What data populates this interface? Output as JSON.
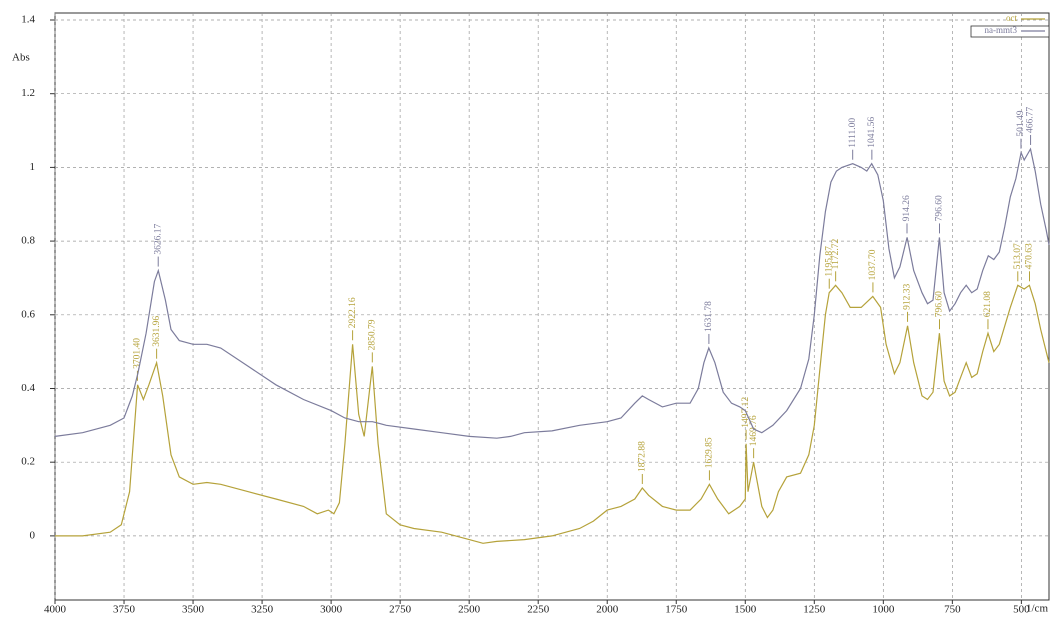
{
  "chart_data": {
    "type": "line",
    "x_label": "1/cm",
    "y_label": "Abs",
    "xlim": [
      4000,
      400
    ],
    "ylim": [
      -0.174,
      1.419
    ],
    "xticks": [
      4000,
      3750,
      3500,
      3250,
      3000,
      2750,
      2500,
      2250,
      2000,
      1750,
      1500,
      1250,
      1000,
      750,
      500
    ],
    "yticks": [
      0,
      0.2,
      0.4,
      0.6,
      0.8,
      1,
      1.2,
      1.4
    ],
    "grid": true,
    "legend": "top-right",
    "series": [
      {
        "name": "oct",
        "color": "#b5a23a",
        "x": [
          4000,
          3900,
          3800,
          3760,
          3730,
          3710,
          3701,
          3680,
          3660,
          3632,
          3610,
          3580,
          3550,
          3500,
          3450,
          3400,
          3300,
          3200,
          3100,
          3050,
          3010,
          2990,
          2970,
          2950,
          2922,
          2900,
          2880,
          2851,
          2830,
          2800,
          2750,
          2700,
          2600,
          2500,
          2450,
          2400,
          2300,
          2200,
          2100,
          2050,
          2000,
          1950,
          1900,
          1873,
          1850,
          1800,
          1750,
          1700,
          1660,
          1630,
          1600,
          1560,
          1520,
          1500,
          1497,
          1490,
          1470,
          1460,
          1440,
          1420,
          1400,
          1380,
          1350,
          1300,
          1270,
          1250,
          1230,
          1210,
          1196,
          1173,
          1150,
          1120,
          1080,
          1038,
          1010,
          990,
          960,
          940,
          912,
          890,
          860,
          840,
          820,
          797,
          780,
          760,
          740,
          720,
          700,
          680,
          660,
          640,
          621,
          600,
          580,
          560,
          540,
          513,
          490,
          471,
          450,
          430,
          410,
          400
        ],
        "values": [
          0.0,
          0.0,
          0.01,
          0.03,
          0.12,
          0.32,
          0.41,
          0.37,
          0.41,
          0.47,
          0.38,
          0.22,
          0.16,
          0.14,
          0.145,
          0.14,
          0.12,
          0.1,
          0.08,
          0.06,
          0.07,
          0.06,
          0.09,
          0.25,
          0.52,
          0.33,
          0.27,
          0.46,
          0.25,
          0.06,
          0.03,
          0.02,
          0.01,
          -0.01,
          -0.02,
          -0.015,
          -0.01,
          0.0,
          0.02,
          0.04,
          0.07,
          0.08,
          0.1,
          0.13,
          0.11,
          0.08,
          0.07,
          0.07,
          0.1,
          0.14,
          0.1,
          0.06,
          0.08,
          0.1,
          0.25,
          0.12,
          0.2,
          0.16,
          0.08,
          0.05,
          0.07,
          0.12,
          0.16,
          0.17,
          0.22,
          0.3,
          0.45,
          0.6,
          0.66,
          0.68,
          0.66,
          0.62,
          0.62,
          0.65,
          0.62,
          0.52,
          0.44,
          0.47,
          0.57,
          0.47,
          0.38,
          0.37,
          0.39,
          0.55,
          0.42,
          0.38,
          0.39,
          0.43,
          0.47,
          0.43,
          0.44,
          0.5,
          0.55,
          0.5,
          0.52,
          0.57,
          0.62,
          0.68,
          0.67,
          0.68,
          0.63,
          0.56,
          0.5,
          0.47
        ],
        "peaks": [
          {
            "x": 3701.4,
            "y": 0.41,
            "label": "3701.40"
          },
          {
            "x": 3631.96,
            "y": 0.47,
            "label": "3631.96"
          },
          {
            "x": 2922.16,
            "y": 0.52,
            "label": "2922.16"
          },
          {
            "x": 2850.79,
            "y": 0.46,
            "label": "2850.79"
          },
          {
            "x": 1872.88,
            "y": 0.13,
            "label": "1872.88"
          },
          {
            "x": 1629.85,
            "y": 0.14,
            "label": "1629.85"
          },
          {
            "x": 1497.12,
            "y": 0.25,
            "label": "1497.12"
          },
          {
            "x": 1469.76,
            "y": 0.2,
            "label": "1469.76"
          },
          {
            "x": 1195.87,
            "y": 0.66,
            "label": "1195.87"
          },
          {
            "x": 1172.72,
            "y": 0.68,
            "label": "1172.72"
          },
          {
            "x": 1037.7,
            "y": 0.65,
            "label": "1037.70"
          },
          {
            "x": 912.33,
            "y": 0.57,
            "label": "912.33"
          },
          {
            "x": 796.6,
            "y": 0.55,
            "label": "796.60"
          },
          {
            "x": 621.08,
            "y": 0.55,
            "label": "621.08"
          },
          {
            "x": 513.07,
            "y": 0.68,
            "label": "513.07"
          },
          {
            "x": 470.63,
            "y": 0.68,
            "label": "470.63"
          }
        ]
      },
      {
        "name": "na-mmt3",
        "color": "#7c7c9c",
        "x": [
          4000,
          3900,
          3800,
          3750,
          3720,
          3700,
          3670,
          3640,
          3626,
          3600,
          3580,
          3550,
          3500,
          3450,
          3400,
          3300,
          3200,
          3100,
          3000,
          2950,
          2900,
          2850,
          2800,
          2700,
          2600,
          2500,
          2400,
          2350,
          2300,
          2200,
          2100,
          2000,
          1950,
          1900,
          1873,
          1850,
          1800,
          1750,
          1700,
          1670,
          1650,
          1632,
          1610,
          1580,
          1550,
          1520,
          1500,
          1470,
          1440,
          1400,
          1350,
          1300,
          1270,
          1250,
          1230,
          1210,
          1190,
          1170,
          1150,
          1111,
          1080,
          1060,
          1042,
          1020,
          1000,
          980,
          960,
          940,
          914,
          890,
          860,
          840,
          820,
          797,
          780,
          760,
          740,
          720,
          700,
          680,
          660,
          640,
          620,
          600,
          580,
          560,
          540,
          520,
          501,
          490,
          467,
          450,
          430,
          410,
          400
        ],
        "values": [
          0.27,
          0.28,
          0.3,
          0.32,
          0.38,
          0.44,
          0.55,
          0.69,
          0.72,
          0.64,
          0.56,
          0.53,
          0.52,
          0.52,
          0.51,
          0.46,
          0.41,
          0.37,
          0.34,
          0.32,
          0.31,
          0.31,
          0.3,
          0.29,
          0.28,
          0.27,
          0.265,
          0.27,
          0.28,
          0.285,
          0.3,
          0.31,
          0.32,
          0.36,
          0.38,
          0.37,
          0.35,
          0.36,
          0.36,
          0.4,
          0.47,
          0.51,
          0.47,
          0.39,
          0.36,
          0.35,
          0.34,
          0.29,
          0.28,
          0.3,
          0.34,
          0.4,
          0.48,
          0.6,
          0.76,
          0.88,
          0.96,
          0.99,
          1.0,
          1.01,
          1.0,
          0.99,
          1.01,
          0.98,
          0.91,
          0.78,
          0.7,
          0.73,
          0.81,
          0.72,
          0.66,
          0.63,
          0.64,
          0.81,
          0.66,
          0.61,
          0.63,
          0.66,
          0.68,
          0.66,
          0.67,
          0.72,
          0.76,
          0.75,
          0.77,
          0.84,
          0.92,
          0.97,
          1.04,
          1.02,
          1.05,
          0.99,
          0.9,
          0.83,
          0.79
        ],
        "peaks": [
          {
            "x": 3626.17,
            "y": 0.72,
            "label": "3626.17"
          },
          {
            "x": 1631.78,
            "y": 0.51,
            "label": "1631.78"
          },
          {
            "x": 1111,
            "y": 1.01,
            "label": "1111.00"
          },
          {
            "x": 1041.56,
            "y": 1.01,
            "label": "1041.56"
          },
          {
            "x": 914.26,
            "y": 0.81,
            "label": "914.26"
          },
          {
            "x": 796.6,
            "y": 0.81,
            "label": "796.60"
          },
          {
            "x": 501.49,
            "y": 1.04,
            "label": "501.49"
          },
          {
            "x": 466.77,
            "y": 1.05,
            "label": "466.77"
          }
        ]
      }
    ]
  }
}
